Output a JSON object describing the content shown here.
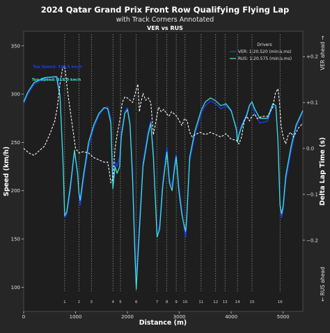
{
  "chart_data": {
    "type": "line",
    "title": "2024 Qatar Grand Prix Front Row Qualifying Flying Lap",
    "subtitle": "with Track Corners Annotated",
    "panel_title": "VER vs RUS",
    "xlabel": "Distance (m)",
    "ylabel": "Speed (km/h)",
    "y2label": "Delta Lap Time (s)",
    "y2_top_note": "VER  ahead  →",
    "y2_bottom_note": "←  RUS  ahead",
    "xlim": [
      0,
      5380
    ],
    "ylim": [
      75,
      365
    ],
    "y2lim": [
      -0.355,
      0.255
    ],
    "x_ticks": [
      0,
      1000,
      2000,
      3000,
      4000,
      5000
    ],
    "y_ticks": [
      100,
      150,
      200,
      250,
      300,
      350
    ],
    "y2_ticks": [
      {
        "value": 0.2,
        "label": "+0.2"
      },
      {
        "value": 0.1,
        "label": "+0.1"
      },
      {
        "value": 0.0,
        "label": "0.0"
      },
      {
        "value": -0.1,
        "label": "−0.1"
      },
      {
        "value": -0.2,
        "label": "−0.2"
      }
    ],
    "legend": {
      "title": "Drivers",
      "position": "top-right",
      "entries": [
        "VER: 1:20.520 (min:s.ms)",
        "RUS: 1:20.575 (min:s.ms)"
      ]
    },
    "colors": {
      "ver": "#1e3cff",
      "rus": "#40e0d0",
      "delta": "#ffffff",
      "corner": "#b8b8b8",
      "panel": "#1e1e1e",
      "page": "#262626"
    },
    "annotations": [
      {
        "label": "Top Speed: 318.5 km/h",
        "x": 650,
        "y": 318.5,
        "color": "#1e3cff"
      },
      {
        "label": "Top Speed: 318.0 km/h",
        "x": 630,
        "y": 318.0,
        "color": "#40e0d0"
      }
    ],
    "corners": [
      {
        "label": "1",
        "x": 790
      },
      {
        "label": "2",
        "x": 1065
      },
      {
        "label": "3",
        "x": 1305
      },
      {
        "label": "4",
        "x": 1720
      },
      {
        "label": "5",
        "x": 1865
      },
      {
        "label": "6",
        "x": 2170
      },
      {
        "label": "7",
        "x": 2570
      },
      {
        "label": "8",
        "x": 2760
      },
      {
        "label": "9",
        "x": 2940
      },
      {
        "label": "10",
        "x": 3110
      },
      {
        "label": "11",
        "x": 3420
      },
      {
        "label": "12",
        "x": 3700
      },
      {
        "label": "13",
        "x": 3880
      },
      {
        "label": "14",
        "x": 4120
      },
      {
        "label": "15",
        "x": 4400
      },
      {
        "label": "16",
        "x": 4940
      }
    ],
    "series": [
      {
        "name": "VER: 1:20.520 (min:s.ms)",
        "color": "#1e3cff",
        "x": [
          0,
          80,
          200,
          400,
          600,
          650,
          700,
          760,
          790,
          830,
          900,
          980,
          1040,
          1065,
          1090,
          1150,
          1250,
          1350,
          1450,
          1550,
          1620,
          1680,
          1720,
          1760,
          1800,
          1850,
          1880,
          1950,
          2000,
          2050,
          2100,
          2140,
          2170,
          2200,
          2300,
          2400,
          2450,
          2500,
          2570,
          2620,
          2680,
          2760,
          2810,
          2860,
          2900,
          2940,
          2990,
          3050,
          3100,
          3120,
          3140,
          3200,
          3300,
          3420,
          3500,
          3600,
          3700,
          3800,
          3900,
          4000,
          4100,
          4120,
          4150,
          4200,
          4300,
          4350,
          4400,
          4450,
          4550,
          4700,
          4800,
          4860,
          4900,
          4940,
          4970,
          5000,
          5050,
          5150,
          5250,
          5380
        ],
        "y": [
          290,
          300,
          310,
          316,
          318,
          318.5,
          300,
          230,
          172,
          175,
          200,
          240,
          215,
          195,
          185,
          210,
          245,
          265,
          278,
          285,
          287,
          275,
          205,
          230,
          225,
          235,
          260,
          282,
          286,
          270,
          220,
          150,
          105,
          140,
          230,
          262,
          272,
          240,
          155,
          165,
          210,
          245,
          212,
          205,
          225,
          238,
          205,
          180,
          158,
          152,
          165,
          230,
          258,
          280,
          288,
          293,
          290,
          285,
          288,
          282,
          265,
          253,
          260,
          268,
          280,
          289,
          292,
          280,
          270,
          272,
          288,
          285,
          255,
          190,
          172,
          180,
          210,
          240,
          265,
          282
        ]
      },
      {
        "name": "RUS: 1:20.575 (min:s.ms)",
        "color": "#40e0d0",
        "x": [
          0,
          80,
          200,
          400,
          600,
          630,
          700,
          760,
          790,
          830,
          900,
          980,
          1040,
          1065,
          1090,
          1150,
          1250,
          1350,
          1450,
          1550,
          1620,
          1680,
          1720,
          1760,
          1800,
          1850,
          1880,
          1950,
          2000,
          2050,
          2100,
          2140,
          2170,
          2200,
          2300,
          2400,
          2450,
          2500,
          2570,
          2620,
          2680,
          2760,
          2810,
          2860,
          2900,
          2940,
          2990,
          3050,
          3100,
          3120,
          3140,
          3200,
          3300,
          3420,
          3500,
          3600,
          3700,
          3800,
          3900,
          4000,
          4100,
          4120,
          4150,
          4200,
          4300,
          4350,
          4400,
          4450,
          4550,
          4700,
          4800,
          4860,
          4900,
          4940,
          4970,
          5000,
          5050,
          5150,
          5250,
          5380
        ],
        "y": [
          292,
          302,
          312,
          317,
          318,
          318.0,
          298,
          228,
          174,
          178,
          205,
          242,
          218,
          198,
          190,
          215,
          250,
          268,
          280,
          286,
          285,
          270,
          202,
          225,
          218,
          225,
          255,
          280,
          284,
          268,
          210,
          140,
          98,
          130,
          225,
          258,
          270,
          235,
          152,
          160,
          205,
          240,
          208,
          200,
          220,
          235,
          200,
          175,
          162,
          158,
          170,
          235,
          262,
          283,
          292,
          296,
          293,
          288,
          290,
          283,
          263,
          250,
          258,
          266,
          278,
          288,
          292,
          285,
          275,
          275,
          290,
          288,
          252,
          185,
          176,
          184,
          215,
          245,
          268,
          283
        ]
      },
      {
        "name": "Delta",
        "color": "#ffffff",
        "axis": "y2",
        "x": [
          0,
          100,
          200,
          300,
          400,
          500,
          600,
          650,
          700,
          750,
          790,
          850,
          900,
          950,
          1000,
          1065,
          1150,
          1250,
          1350,
          1450,
          1550,
          1620,
          1650,
          1680,
          1720,
          1760,
          1800,
          1850,
          1900,
          1950,
          2000,
          2050,
          2100,
          2150,
          2200,
          2230,
          2260,
          2300,
          2350,
          2400,
          2450,
          2500,
          2550,
          2600,
          2650,
          2700,
          2760,
          2800,
          2850,
          2900,
          2950,
          3000,
          3050,
          3100,
          3150,
          3200,
          3250,
          3300,
          3400,
          3500,
          3600,
          3700,
          3800,
          3900,
          4000,
          4100,
          4150,
          4200,
          4250,
          4300,
          4350,
          4400,
          4450,
          4500,
          4600,
          4700,
          4800,
          4850,
          4900,
          4930,
          4960,
          5000,
          5050,
          5100,
          5150,
          5200,
          5250,
          5300,
          5380
        ],
        "y": [
          0,
          -0.01,
          -0.015,
          -0.005,
          0.005,
          0.03,
          0.06,
          0.09,
          0.14,
          0.175,
          0.18,
          0.12,
          0.08,
          0.04,
          0.0,
          -0.01,
          -0.007,
          -0.01,
          -0.02,
          -0.025,
          -0.03,
          -0.03,
          -0.05,
          -0.075,
          -0.065,
          0.0,
          0.03,
          0.06,
          0.1,
          0.112,
          0.11,
          0.105,
          0.1,
          0.12,
          0.14,
          0.08,
          0.1,
          0.12,
          0.105,
          0.11,
          0.1,
          0.03,
          0.06,
          0.09,
          0.08,
          0.085,
          0.075,
          0.07,
          0.08,
          0.075,
          0.07,
          0.06,
          0.05,
          0.065,
          0.06,
          0.035,
          0.025,
          0.03,
          0.035,
          0.03,
          0.035,
          0.03,
          0.025,
          0.032,
          0.02,
          0.018,
          0.01,
          0.025,
          0.06,
          0.07,
          0.06,
          0.07,
          0.075,
          0.065,
          0.07,
          0.07,
          0.09,
          0.12,
          0.13,
          0.1,
          0.05,
          0.025,
          0.01,
          0.03,
          0.035,
          0.025,
          0.035,
          0.045,
          0.055
        ]
      }
    ]
  }
}
